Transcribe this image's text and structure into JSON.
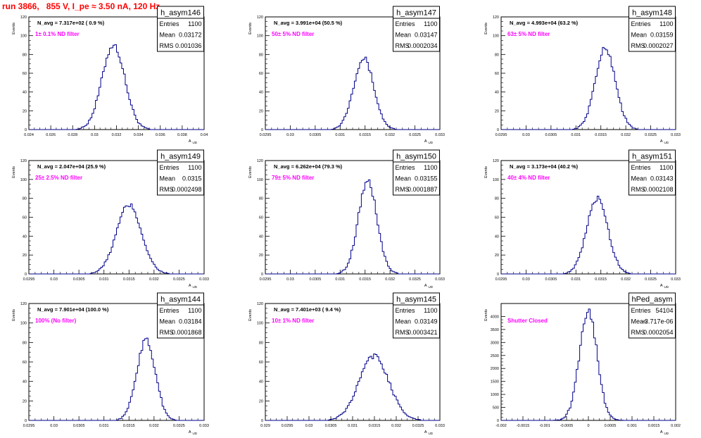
{
  "page_title": "run 3866,   855 V, I_pe ≈ 3.50 nA, 120 Hz",
  "colors": {
    "title": "#ff0000",
    "histogram": "#00008b",
    "filter_label": "#ff00ff"
  },
  "chart_data": [
    {
      "type": "histogram",
      "name": "h_asym146",
      "ylabel": "Events",
      "xlabel": "A",
      "xlabel_sub": "UD",
      "navg": "N_avg = 7.317e+02 ( 0.9 %)",
      "filter": "1± 0.1% ND filter",
      "stats": {
        "Entries": "1100",
        "Mean": "0.03172",
        "RMS": "0.001036"
      },
      "xlim": [
        0.024,
        0.04
      ],
      "ylim": [
        0,
        120
      ],
      "xticks": [
        "0.024",
        "0.026",
        "0.028",
        "0.03",
        "0.032",
        "0.034",
        "0.036",
        "0.038",
        "0.04"
      ],
      "yticks": [
        "0",
        "20",
        "40",
        "60",
        "80",
        "100",
        "120"
      ],
      "peak_x": 0.03172,
      "peak_y": 90,
      "sigma": 0.00104
    },
    {
      "type": "histogram",
      "name": "h_asym147",
      "ylabel": "Events",
      "xlabel": "A",
      "xlabel_sub": "UD",
      "navg": "N_avg = 3.991e+04 (50.5 %)",
      "filter": "50± 5% ND filter",
      "stats": {
        "Entries": "1100",
        "Mean": "0.03147",
        "RMS": "0.0002034"
      },
      "xlim": [
        0.0295,
        0.033
      ],
      "ylim": [
        0,
        120
      ],
      "xticks": [
        "0.0295",
        "0.03",
        "0.0305",
        "0.031",
        "0.0315",
        "0.032",
        "0.0325",
        "0.033"
      ],
      "yticks": [
        "0",
        "20",
        "40",
        "60",
        "80",
        "100",
        "120"
      ],
      "peak_x": 0.03147,
      "peak_y": 76,
      "sigma": 0.000203
    },
    {
      "type": "histogram",
      "name": "h_asym148",
      "ylabel": "Events",
      "xlabel": "A",
      "xlabel_sub": "UD",
      "navg": "N_avg = 4.993e+04 (63.2 %)",
      "filter": "63± 5% ND filter",
      "stats": {
        "Entries": "1100",
        "Mean": "0.03159",
        "RMS": "0.0002027"
      },
      "xlim": [
        0.0295,
        0.033
      ],
      "ylim": [
        0,
        120
      ],
      "xticks": [
        "0.0295",
        "0.03",
        "0.0305",
        "0.031",
        "0.0315",
        "0.032",
        "0.0325",
        "0.033"
      ],
      "yticks": [
        "0",
        "20",
        "40",
        "60",
        "80",
        "100",
        "120"
      ],
      "peak_x": 0.03159,
      "peak_y": 86,
      "sigma": 0.000203
    },
    {
      "type": "histogram",
      "name": "h_asym149",
      "ylabel": "Events",
      "xlabel": "A",
      "xlabel_sub": "UD",
      "navg": "N_avg = 2.047e+04 (25.9 %)",
      "filter": "25± 2.5% ND filter",
      "stats": {
        "Entries": "1100",
        "Mean": "0.0315",
        "RMS": "0.0002498"
      },
      "xlim": [
        0.0295,
        0.033
      ],
      "ylim": [
        0,
        120
      ],
      "xticks": [
        "0.0295",
        "0.03",
        "0.0305",
        "0.031",
        "0.0315",
        "0.032",
        "0.0325",
        "0.033"
      ],
      "yticks": [
        "0",
        "20",
        "40",
        "60",
        "80",
        "100",
        "120"
      ],
      "peak_x": 0.0315,
      "peak_y": 73,
      "sigma": 0.00025
    },
    {
      "type": "histogram",
      "name": "h_asym150",
      "ylabel": "Events",
      "xlabel": "A",
      "xlabel_sub": "UD",
      "navg": "N_avg = 6.262e+04 (79.3 %)",
      "filter": "79± 5% ND filter",
      "stats": {
        "Entries": "1100",
        "Mean": "0.03155",
        "RMS": "0.0001887"
      },
      "xlim": [
        0.0295,
        0.033
      ],
      "ylim": [
        0,
        120
      ],
      "xticks": [
        "0.0295",
        "0.03",
        "0.0305",
        "0.031",
        "0.0315",
        "0.032",
        "0.0325",
        "0.033"
      ],
      "yticks": [
        "0",
        "20",
        "40",
        "60",
        "80",
        "100",
        "120"
      ],
      "peak_x": 0.03155,
      "peak_y": 98,
      "sigma": 0.000189
    },
    {
      "type": "histogram",
      "name": "h_asym151",
      "ylabel": "Events",
      "xlabel": "A",
      "xlabel_sub": "UD",
      "navg": "N_avg = 3.173e+04 (40.2 %)",
      "filter": "40± 4% ND filter",
      "stats": {
        "Entries": "1100",
        "Mean": "0.03143",
        "RMS": "0.0002108"
      },
      "xlim": [
        0.0295,
        0.033
      ],
      "ylim": [
        0,
        120
      ],
      "xticks": [
        "0.0295",
        "0.03",
        "0.0305",
        "0.031",
        "0.0315",
        "0.032",
        "0.0325",
        "0.033"
      ],
      "yticks": [
        "0",
        "20",
        "40",
        "60",
        "80",
        "100",
        "120"
      ],
      "peak_x": 0.03143,
      "peak_y": 80,
      "sigma": 0.000211
    },
    {
      "type": "histogram",
      "name": "h_asym144",
      "ylabel": "Events",
      "xlabel": "A",
      "xlabel_sub": "UD",
      "navg": "N_avg = 7.901e+04 (100.0 %)",
      "filter": "100% (No filter)",
      "stats": {
        "Entries": "1100",
        "Mean": "0.03184",
        "RMS": "0.0001868"
      },
      "xlim": [
        0.0295,
        0.033
      ],
      "ylim": [
        0,
        120
      ],
      "xticks": [
        "0.0295",
        "0.03",
        "0.0305",
        "0.031",
        "0.0315",
        "0.032",
        "0.0325",
        "0.033"
      ],
      "yticks": [
        "0",
        "20",
        "40",
        "60",
        "80",
        "100",
        "120"
      ],
      "peak_x": 0.03184,
      "peak_y": 82,
      "sigma": 0.000187
    },
    {
      "type": "histogram",
      "name": "h_asym145",
      "ylabel": "Events",
      "xlabel": "A",
      "xlabel_sub": "UD",
      "navg": "N_avg = 7.401e+03 ( 9.4 %)",
      "filter": "10± 1% ND filter",
      "stats": {
        "Entries": "1100",
        "Mean": "0.03149",
        "RMS": "0.0003421"
      },
      "xlim": [
        0.029,
        0.033
      ],
      "ylim": [
        0,
        120
      ],
      "xticks": [
        "0.029",
        "0.0295",
        "0.03",
        "0.0305",
        "0.031",
        "0.0315",
        "0.032",
        "0.0325",
        "0.033"
      ],
      "yticks": [
        "0",
        "20",
        "40",
        "60",
        "80",
        "100",
        "120"
      ],
      "peak_x": 0.03149,
      "peak_y": 66,
      "sigma": 0.000342
    },
    {
      "type": "histogram",
      "name": "hPed_asym",
      "ylabel": "Events",
      "xlabel": "A",
      "xlabel_sub": "UD",
      "navg": "",
      "filter": "Shutter Closed",
      "stats": {
        "Entries": "54104",
        "Mean": "-3.717e-06",
        "RMS": "0.0002054"
      },
      "xlim": [
        -0.002,
        0.002
      ],
      "ylim": [
        0,
        4500
      ],
      "xticks": [
        "-0.002",
        "-0.0015",
        "-0.001",
        "-0.0005",
        "0",
        "0.0005",
        "0.001",
        "0.0015",
        "0.002"
      ],
      "yticks": [
        "0",
        "500",
        "1000",
        "1500",
        "2000",
        "2500",
        "3000",
        "3500",
        "4000"
      ],
      "peak_x": -3.7e-06,
      "peak_y": 4200,
      "sigma": 0.000205
    }
  ]
}
